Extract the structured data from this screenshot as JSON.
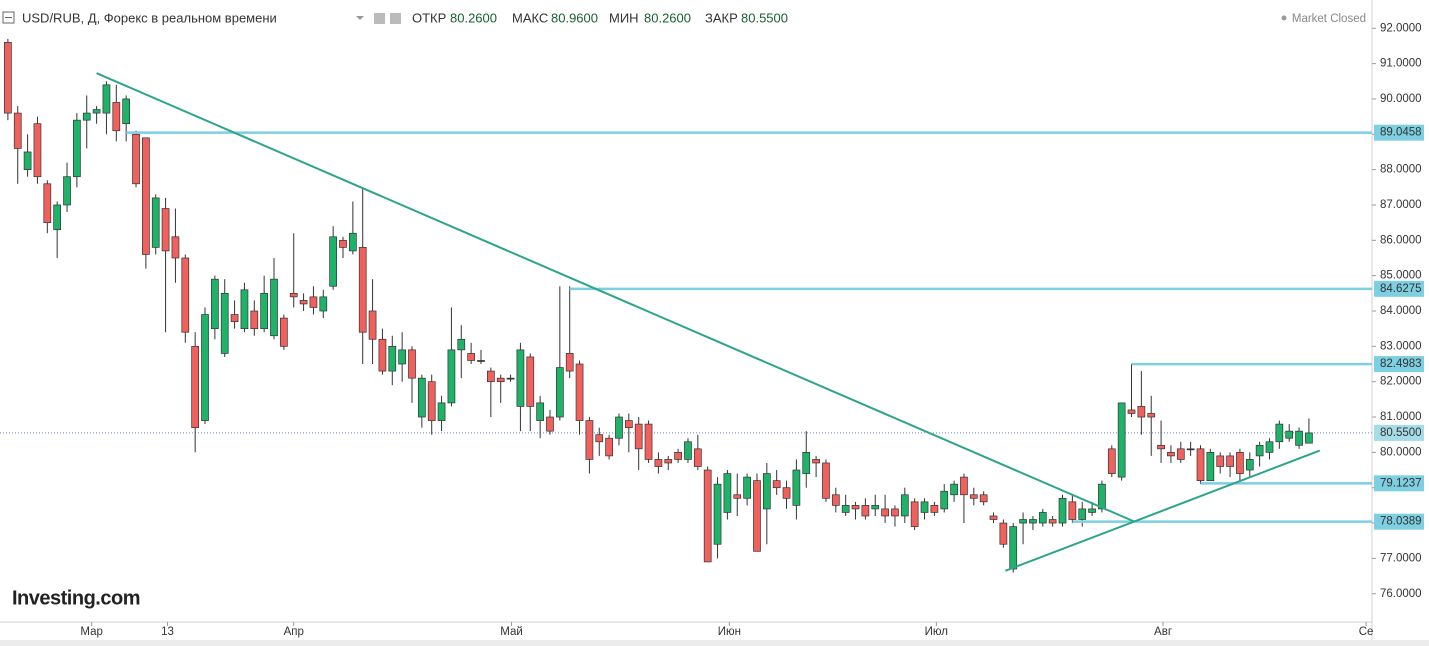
{
  "header": {
    "title": "USD/RUB, Д, Форекс в реальном времени",
    "open_label": "ОТКР",
    "open": "80.2600",
    "high_label": "МАКС",
    "high": "80.9600",
    "low_label": "МИН",
    "low": "80.2600",
    "close_label": "ЗАКР",
    "close": "80.5500",
    "status": "Market Closed",
    "logo": "Investing.com"
  },
  "chart_data": {
    "type": "candlestick",
    "up_color": "#1fb36a",
    "down_color": "#f0605d",
    "level_color": "#7ecfe1",
    "trend_color": "#2ea48b",
    "xlim": [
      -0.8,
      138.4
    ],
    "ylim": [
      75.2,
      92.8
    ],
    "xticks": [
      {
        "value": 8.5,
        "label": "Мар"
      },
      {
        "value": 16.2,
        "label": "13"
      },
      {
        "value": 29,
        "label": "Апр"
      },
      {
        "value": 51.1,
        "label": "Май"
      },
      {
        "value": 73.2,
        "label": "Июн"
      },
      {
        "value": 94.2,
        "label": "Июл"
      },
      {
        "value": 117.2,
        "label": "Авг"
      },
      {
        "value": 137.8,
        "label": "Се"
      }
    ],
    "yticks": [
      {
        "value": 76,
        "label": "76.0000"
      },
      {
        "value": 77,
        "label": "77.0000"
      },
      {
        "value": 78,
        "label": "78.0000"
      },
      {
        "value": 79,
        "label": "79.0000"
      },
      {
        "value": 80,
        "label": "80.0000"
      },
      {
        "value": 81,
        "label": "81.0000"
      },
      {
        "value": 82,
        "label": "82.0000"
      },
      {
        "value": 83,
        "label": "83.0000"
      },
      {
        "value": 84,
        "label": "84.0000"
      },
      {
        "value": 85,
        "label": "85.0000"
      },
      {
        "value": 86,
        "label": "86.0000"
      },
      {
        "value": 87,
        "label": "87.0000"
      },
      {
        "value": 88,
        "label": "88.0000"
      },
      {
        "value": 89,
        "label": "89.0000"
      },
      {
        "value": 90,
        "label": "90.0000"
      },
      {
        "value": 91,
        "label": "91.0000"
      },
      {
        "value": 92,
        "label": "92.0000"
      }
    ],
    "open": [
      91.6,
      89.6,
      88.0,
      89.3,
      87.6,
      86.3,
      87.0,
      87.8,
      89.4,
      89.6,
      89.6,
      89.9,
      89.3,
      89.0,
      88.9,
      85.8,
      86.9,
      86.1,
      85.5,
      83.0,
      80.9,
      83.5,
      82.8,
      83.9,
      83.5,
      84.0,
      83.5,
      83.3,
      83.8,
      84.5,
      84.3,
      84.4,
      84.0,
      84.7,
      86.0,
      85.7,
      85.8,
      84.0,
      83.2,
      82.3,
      82.5,
      82.9,
      81.0,
      82.0,
      80.9,
      81.4,
      82.9,
      82.8,
      82.6,
      82.3,
      82.1,
      82.1,
      81.3,
      82.7,
      80.9,
      81.0,
      81.0,
      82.8,
      82.5,
      80.9,
      80.5,
      80.4,
      80.4,
      80.9,
      80.8,
      80.8,
      79.8,
      79.8,
      80.0,
      79.8,
      80.1,
      79.5,
      77.4,
      78.3,
      78.8,
      78.7,
      79.2,
      78.4,
      79.2,
      79.0,
      78.5,
      79.4,
      79.8,
      79.7,
      78.8,
      78.3,
      78.5,
      78.5,
      78.4,
      78.4,
      78.4,
      78.2,
      78.6,
      78.3,
      78.5,
      78.4,
      78.8,
      79.3,
      78.8,
      78.8,
      78.2,
      78.0,
      76.7,
      78.0,
      78.0,
      78.0,
      78.1,
      78.0,
      78.6,
      78.1,
      78.3,
      78.4,
      80.1,
      79.3,
      81.2,
      81.3,
      81.1,
      80.2,
      80.0,
      80.1,
      80.1,
      80.1,
      79.2,
      79.9,
      79.9,
      80.0,
      79.5,
      79.9,
      80.0,
      80.3,
      80.4,
      80.2,
      80.26
    ],
    "high": [
      91.7,
      89.8,
      89.0,
      89.5,
      87.7,
      87.1,
      88.2,
      89.6,
      90.1,
      89.8,
      90.5,
      90.4,
      90.1,
      89.1,
      88.9,
      87.3,
      87.2,
      86.9,
      85.6,
      83.4,
      84.1,
      85.0,
      84.9,
      84.3,
      84.8,
      84.3,
      85.0,
      85.5,
      83.9,
      86.2,
      84.5,
      84.7,
      84.6,
      86.4,
      86.1,
      87.1,
      87.5,
      84.9,
      83.5,
      83.3,
      83.4,
      83.0,
      82.2,
      82.2,
      81.6,
      84.1,
      83.6,
      83.1,
      82.9,
      82.4,
      82.2,
      82.2,
      83.1,
      82.8,
      81.6,
      81.2,
      84.7,
      84.7,
      82.6,
      81.0,
      80.7,
      80.5,
      81.1,
      81.1,
      81.0,
      80.9,
      80.0,
      79.9,
      80.1,
      80.4,
      80.5,
      79.6,
      79.3,
      79.5,
      79.4,
      79.4,
      79.4,
      79.7,
      79.5,
      79.2,
      79.8,
      80.6,
      79.9,
      79.8,
      79.0,
      78.8,
      78.6,
      78.7,
      78.8,
      78.8,
      78.5,
      79.0,
      78.7,
      78.7,
      78.6,
      79.1,
      79.2,
      79.4,
      79.0,
      78.9,
      78.3,
      78.1,
      78.0,
      78.3,
      78.2,
      78.4,
      78.2,
      78.8,
      78.8,
      78.6,
      78.6,
      79.2,
      80.2,
      81.4,
      82.5,
      82.3,
      81.6,
      80.9,
      80.2,
      80.3,
      80.3,
      80.2,
      80.1,
      80.0,
      80.0,
      80.1,
      80.0,
      80.3,
      80.4,
      80.9,
      80.8,
      80.7,
      80.96
    ],
    "low": [
      89.4,
      87.6,
      87.8,
      87.6,
      86.2,
      85.5,
      86.8,
      87.5,
      88.6,
      89.3,
      89.0,
      88.8,
      88.8,
      87.5,
      85.2,
      85.6,
      83.4,
      84.8,
      83.1,
      80.0,
      80.8,
      83.2,
      82.7,
      83.5,
      83.4,
      83.3,
      83.4,
      83.2,
      82.9,
      84.1,
      84.0,
      83.9,
      83.8,
      84.6,
      85.5,
      85.6,
      82.5,
      82.5,
      82.2,
      81.9,
      82.0,
      81.4,
      80.7,
      80.5,
      80.6,
      81.3,
      82.1,
      82.5,
      82.5,
      81.0,
      81.4,
      82.0,
      80.6,
      80.6,
      80.4,
      80.5,
      80.9,
      82.1,
      80.5,
      79.4,
      79.9,
      79.8,
      80.2,
      80.0,
      79.5,
      79.7,
      79.4,
      79.5,
      79.7,
      79.7,
      79.5,
      76.9,
      77.0,
      78.1,
      78.2,
      78.5,
      77.2,
      77.4,
      78.8,
      78.4,
      78.1,
      79.0,
      79.3,
      78.6,
      78.3,
      78.2,
      78.1,
      78.1,
      78.2,
      78.0,
      77.9,
      78.0,
      77.8,
      78.1,
      78.2,
      78.3,
      78.6,
      78.0,
      78.5,
      78.5,
      78.0,
      77.3,
      76.6,
      77.4,
      77.8,
      77.9,
      77.9,
      77.9,
      78.0,
      77.9,
      78.2,
      78.3,
      79.3,
      79.2,
      81.0,
      80.5,
      79.9,
      79.7,
      79.7,
      79.7,
      79.9,
      79.1,
      79.2,
      79.4,
      79.3,
      79.2,
      79.3,
      79.6,
      79.8,
      80.1,
      80.3,
      80.1,
      80.26
    ],
    "close": [
      89.6,
      88.6,
      88.5,
      87.8,
      86.5,
      87.0,
      87.8,
      89.4,
      89.6,
      89.7,
      90.4,
      89.1,
      90.0,
      87.6,
      85.6,
      87.2,
      85.7,
      85.5,
      83.4,
      80.7,
      83.9,
      84.9,
      84.5,
      83.7,
      84.6,
      83.5,
      84.5,
      84.9,
      83.0,
      84.4,
      84.2,
      84.1,
      84.4,
      86.1,
      85.8,
      86.2,
      83.4,
      83.2,
      82.3,
      83.0,
      82.9,
      82.1,
      82.1,
      80.9,
      81.4,
      82.9,
      83.2,
      82.6,
      82.6,
      82.0,
      82.0,
      82.1,
      82.9,
      81.3,
      81.4,
      80.6,
      82.4,
      82.3,
      80.9,
      79.8,
      80.3,
      79.9,
      81.0,
      80.7,
      80.1,
      79.8,
      79.6,
      79.7,
      79.8,
      80.3,
      79.6,
      76.9,
      79.1,
      79.4,
      78.7,
      79.3,
      77.2,
      79.4,
      79.0,
      78.7,
      79.5,
      80.0,
      79.7,
      78.7,
      78.5,
      78.5,
      78.4,
      78.2,
      78.5,
      78.2,
      78.2,
      78.8,
      77.9,
      78.6,
      78.3,
      78.9,
      79.1,
      78.8,
      78.7,
      78.6,
      78.1,
      77.4,
      77.9,
      78.1,
      78.1,
      78.3,
      78.0,
      78.7,
      78.1,
      78.4,
      78.4,
      79.1,
      79.4,
      81.4,
      81.1,
      81.0,
      81.0,
      80.1,
      79.9,
      79.8,
      80.1,
      79.2,
      80.0,
      79.6,
      79.6,
      79.4,
      79.8,
      80.2,
      80.3,
      80.8,
      80.6,
      80.6,
      80.55
    ],
    "levels": [
      {
        "value": 89.0458,
        "start": 12
      },
      {
        "value": 84.6275,
        "start": 57
      },
      {
        "value": 82.4983,
        "start": 114
      },
      {
        "value": 79.1237,
        "start": 121
      },
      {
        "value": 78.0389,
        "start": 108
      }
    ],
    "last_price": {
      "value": 80.55,
      "label": "80.5500"
    },
    "trendlines": [
      {
        "start": [
          9.0,
          90.73
        ],
        "end": [
          114.3,
          78.04
        ]
      },
      {
        "start": [
          101.2,
          76.65
        ],
        "end": [
          133.1,
          80.05
        ]
      }
    ]
  }
}
